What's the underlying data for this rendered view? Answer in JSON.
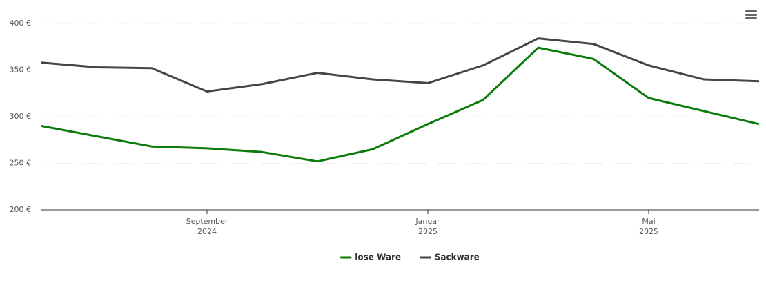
{
  "chart_data": {
    "type": "line",
    "x": [
      "2024-06",
      "2024-07",
      "2024-08",
      "2024-09",
      "2024-10",
      "2024-11",
      "2024-12",
      "2025-01",
      "2025-02",
      "2025-03",
      "2025-04",
      "2025-05",
      "2025-06",
      "2025-07"
    ],
    "xlim": [
      "2024-06",
      "2025-07"
    ],
    "xticks": [
      {
        "value": "2024-09",
        "label": [
          "September",
          "2024"
        ]
      },
      {
        "value": "2025-01",
        "label": [
          "Januar",
          "2025"
        ]
      },
      {
        "value": "2025-05",
        "label": [
          "Mai",
          "2025"
        ]
      }
    ],
    "ylim": [
      200,
      400
    ],
    "yticks": [
      {
        "value": 200,
        "label": "200 €"
      },
      {
        "value": 250,
        "label": "250 €"
      },
      {
        "value": 300,
        "label": "300 €"
      },
      {
        "value": 350,
        "label": "350 €"
      },
      {
        "value": 400,
        "label": "400 €"
      }
    ],
    "grid": true,
    "legend": "bottom",
    "series": [
      {
        "name": "lose Ware",
        "color": "#0a7a0a",
        "values": [
          290,
          279,
          268,
          266,
          262,
          252,
          265,
          292,
          318,
          374,
          362,
          320,
          306,
          292
        ]
      },
      {
        "name": "Sackware",
        "color": "#454545",
        "values": [
          358,
          353,
          352,
          327,
          335,
          347,
          340,
          336,
          355,
          384,
          378,
          355,
          340,
          338
        ]
      }
    ]
  }
}
